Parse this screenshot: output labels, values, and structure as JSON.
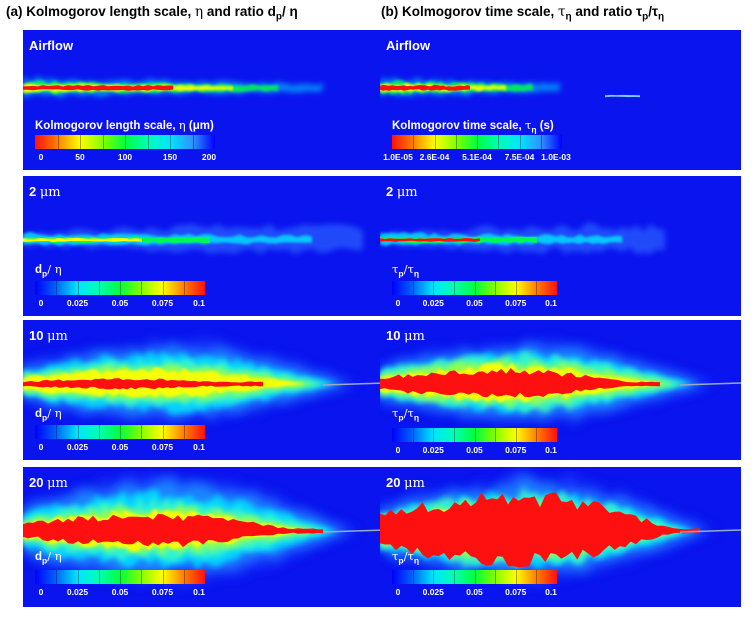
{
  "columns": [
    {
      "title_prefix": "(a) Kolmogorov length scale, ",
      "title_sym": "η",
      "title_mid": " and ratio d",
      "title_sub": "p",
      "title_end": "/ η"
    },
    {
      "title_prefix": "(b) Kolmogorov time scale, ",
      "title_sym": "τ",
      "title_sub": "η",
      "title_mid": " and ratio τ",
      "title_sub2": "p",
      "title_end": "/τ",
      "title_sub3": "η"
    }
  ],
  "rows": [
    {
      "label": "Airflow",
      "intensity": 0.12
    },
    {
      "label_num": "2 ",
      "label_unit": "μm",
      "intensity": 0.18
    },
    {
      "label_num": "10 ",
      "label_unit": "μm",
      "intensity": 0.6
    },
    {
      "label_num": "20 ",
      "label_unit": "μm",
      "intensity": 0.9
    }
  ],
  "colorbars": {
    "length": {
      "title": "Kolmogorov length scale, ",
      "sym": "η",
      "unit": " (μm)",
      "ticks": [
        "0",
        "50",
        "100",
        "150",
        "200"
      ]
    },
    "time": {
      "title": "Kolmogorov time scale, ",
      "sym": "τ",
      "sub": "η",
      "unit": " (s)",
      "ticks": [
        "1.0E-05",
        "2.6E-04",
        "5.1E-04",
        "7.5E-04",
        "1.0E-03"
      ]
    },
    "ratio_d": {
      "label": "d",
      "sub": "p",
      "label_end": "/ η",
      "ticks": [
        "0",
        "0.025",
        "0.05",
        "0.075",
        "0.1"
      ]
    },
    "ratio_t": {
      "label": "τ",
      "sub": "p",
      "label_end": "/τ",
      "sub2": "η",
      "ticks": [
        "0",
        "0.025",
        "0.05",
        "0.075",
        "0.1"
      ]
    }
  },
  "colors": {
    "background": "#0a14ee",
    "low": "#0000ff",
    "cyan": "#00e5ff",
    "green": "#00ff40",
    "yellow": "#ffff00",
    "red": "#ff1010"
  }
}
